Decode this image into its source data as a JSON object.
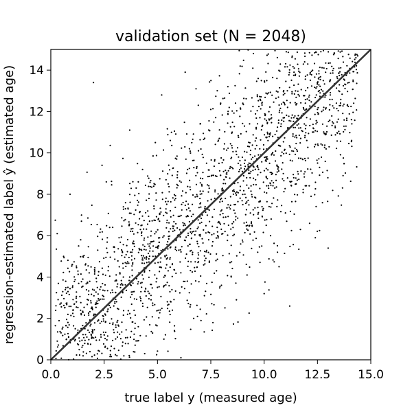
{
  "chart_data": {
    "type": "scatter",
    "title": "validation set (N = 2048)",
    "xlabel": "true label y (measured age)",
    "ylabel": "regression-estimated label ŷ (estimated age)",
    "xlim": [
      0,
      15
    ],
    "ylim": [
      0,
      15
    ],
    "x_ticks": [
      0,
      2.5,
      5,
      7.5,
      10,
      12.5,
      15
    ],
    "x_tick_labels": [
      "0.0",
      "2.5",
      "5.0",
      "7.5",
      "10.0",
      "12.5",
      "15.0"
    ],
    "y_ticks": [
      0,
      2,
      4,
      6,
      8,
      10,
      12,
      14
    ],
    "y_tick_labels": [
      "0",
      "2",
      "4",
      "6",
      "8",
      "10",
      "12",
      "14"
    ],
    "grid": false,
    "point_count": 2048,
    "point_color": "#000000",
    "reference_line": {
      "x": [
        0,
        15
      ],
      "y": [
        0,
        15
      ],
      "color": "#333333"
    },
    "series": [
      {
        "values_description": "approximate subset of visible points",
        "points": [
          [
            0.3,
            6.1
          ],
          [
            0.6,
            5.0
          ],
          [
            0.8,
            3.5
          ],
          [
            1.0,
            4.6
          ],
          [
            0.9,
            8.0
          ],
          [
            1.2,
            2.8
          ],
          [
            1.4,
            5.8
          ],
          [
            1.5,
            3.9
          ],
          [
            1.6,
            1.5
          ],
          [
            1.8,
            4.2
          ],
          [
            2.0,
            13.4
          ],
          [
            2.1,
            2.2
          ],
          [
            2.2,
            5.3
          ],
          [
            2.3,
            3.4
          ],
          [
            2.4,
            9.4
          ],
          [
            2.5,
            1.2
          ],
          [
            2.6,
            8.6
          ],
          [
            2.7,
            4.5
          ],
          [
            2.9,
            6.4
          ],
          [
            3.0,
            2.8
          ],
          [
            3.1,
            0.2
          ],
          [
            3.2,
            5.9
          ],
          [
            3.4,
            4.0
          ],
          [
            3.5,
            7.3
          ],
          [
            3.6,
            2.2
          ],
          [
            3.7,
            11.1
          ],
          [
            3.8,
            5.2
          ],
          [
            3.9,
            3.3
          ],
          [
            4.0,
            8.3
          ],
          [
            4.1,
            1.6
          ],
          [
            4.2,
            6.3
          ],
          [
            4.3,
            9.2
          ],
          [
            4.4,
            0.3
          ],
          [
            4.5,
            4.7
          ],
          [
            4.6,
            7.8
          ],
          [
            4.7,
            2.9
          ],
          [
            4.8,
            5.5
          ],
          [
            4.9,
            10.5
          ],
          [
            5.0,
            3.5
          ],
          [
            5.1,
            6.7
          ],
          [
            5.2,
            12.8
          ],
          [
            5.3,
            1.0
          ],
          [
            5.4,
            8.7
          ],
          [
            5.5,
            4.3
          ],
          [
            5.6,
            7.2
          ],
          [
            5.7,
            2.4
          ],
          [
            5.9,
            9.7
          ],
          [
            6.0,
            5.3
          ],
          [
            6.1,
            0.1
          ],
          [
            6.2,
            7.6
          ],
          [
            6.3,
            13.9
          ],
          [
            6.4,
            3.8
          ],
          [
            6.5,
            10.2
          ],
          [
            6.6,
            6.1
          ],
          [
            6.7,
            2.0
          ],
          [
            6.8,
            8.9
          ],
          [
            6.9,
            4.9
          ],
          [
            7.0,
            11.4
          ],
          [
            7.1,
            7.0
          ],
          [
            7.2,
            3.1
          ],
          [
            7.3,
            9.5
          ],
          [
            7.4,
            5.8
          ],
          [
            7.5,
            12.1
          ],
          [
            7.6,
            1.8
          ],
          [
            7.7,
            8.2
          ],
          [
            7.8,
            6.4
          ],
          [
            7.9,
            10.7
          ],
          [
            8.0,
            3.6
          ],
          [
            8.1,
            9.1
          ],
          [
            8.2,
            6.9
          ],
          [
            8.3,
            13.2
          ],
          [
            8.4,
            4.7
          ],
          [
            8.5,
            11.0
          ],
          [
            8.6,
            7.5
          ],
          [
            8.7,
            2.9
          ],
          [
            8.8,
            9.8
          ],
          [
            8.9,
            5.6
          ],
          [
            9.0,
            12.4
          ],
          [
            9.1,
            8.0
          ],
          [
            9.2,
            4.1
          ],
          [
            9.3,
            10.3
          ],
          [
            9.4,
            6.6
          ],
          [
            9.5,
            14.8
          ],
          [
            9.6,
            8.7
          ],
          [
            9.7,
            5.2
          ],
          [
            9.8,
            11.7
          ],
          [
            9.9,
            7.4
          ],
          [
            10.0,
            3.2
          ],
          [
            10.1,
            9.6
          ],
          [
            10.2,
            12.9
          ],
          [
            10.3,
            6.0
          ],
          [
            10.4,
            10.8
          ],
          [
            10.5,
            8.3
          ],
          [
            10.6,
            13.6
          ],
          [
            10.7,
            4.5
          ],
          [
            10.8,
            11.4
          ],
          [
            10.9,
            9.0
          ],
          [
            11.0,
            7.1
          ],
          [
            11.1,
            12.2
          ],
          [
            11.2,
            2.6
          ],
          [
            11.3,
            10.1
          ],
          [
            11.4,
            13.9
          ],
          [
            11.5,
            8.5
          ],
          [
            11.6,
            11.8
          ],
          [
            11.7,
            6.3
          ],
          [
            11.8,
            9.7
          ],
          [
            11.9,
            14.4
          ],
          [
            12.0,
            10.6
          ],
          [
            12.1,
            12.7
          ],
          [
            12.2,
            7.9
          ],
          [
            12.3,
            11.2
          ],
          [
            12.4,
            5.9
          ],
          [
            12.5,
            13.4
          ],
          [
            12.6,
            9.3
          ],
          [
            12.7,
            12.0
          ],
          [
            12.8,
            14.1
          ],
          [
            12.9,
            10.9
          ],
          [
            13.0,
            5.4
          ],
          [
            13.1,
            12.8
          ],
          [
            13.2,
            11.5
          ],
          [
            13.5,
            13.0
          ],
          [
            13.7,
            8.9
          ],
          [
            13.9,
            12.3
          ],
          [
            14.2,
            12.4
          ],
          [
            14.3,
            14.6
          ],
          [
            14.1,
            10.6
          ]
        ]
      }
    ]
  }
}
